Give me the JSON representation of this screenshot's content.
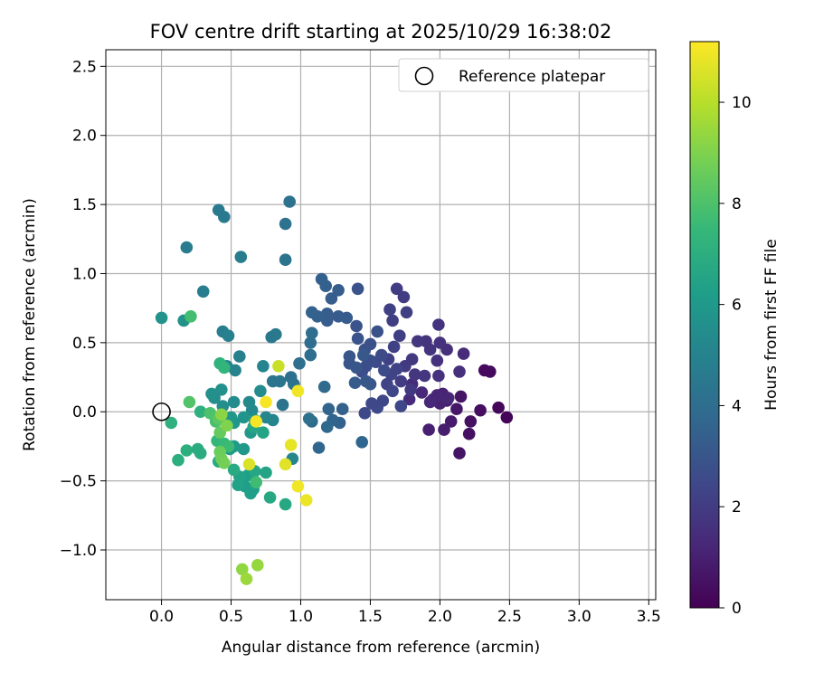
{
  "chart_data": {
    "type": "scatter",
    "title": "FOV centre drift starting at 2025/10/29 16:38:02",
    "xlabel": "Angular distance from reference (arcmin)",
    "ylabel": "Rotation from reference (arcmin)",
    "xlim": [
      -0.4,
      3.55
    ],
    "ylim": [
      -1.36,
      2.62
    ],
    "xticks": [
      "0.0",
      "0.5",
      "1.0",
      "1.5",
      "2.0",
      "2.5",
      "3.0",
      "3.5"
    ],
    "yticks": [
      "−1.0",
      "−0.5",
      "0.0",
      "0.5",
      "1.0",
      "1.5",
      "2.0",
      "2.5"
    ],
    "grid": true,
    "legend": {
      "position": "top-right",
      "entries": [
        "Reference platepar"
      ]
    },
    "reference_point": {
      "x": 0.0,
      "y": 0.0
    },
    "colorbar": {
      "label": "Hours from first FF file",
      "range": [
        0,
        11.2
      ],
      "ticks": [
        "0",
        "2",
        "4",
        "6",
        "8",
        "10"
      ],
      "colormap": [
        "#440154",
        "#482878",
        "#3e4989",
        "#31688e",
        "#26828e",
        "#1f9e89",
        "#35b779",
        "#6ece58",
        "#b5de2b",
        "#fde725"
      ]
    },
    "series": [
      {
        "name": "Hours from first FF file (colour)",
        "points": [
          [
            2.48,
            -0.04,
            0.1
          ],
          [
            2.42,
            0.03,
            0.2
          ],
          [
            2.36,
            0.29,
            0.3
          ],
          [
            2.32,
            0.3,
            0.3
          ],
          [
            2.29,
            0.01,
            0.4
          ],
          [
            2.22,
            -0.07,
            0.5
          ],
          [
            2.21,
            -0.16,
            0.5
          ],
          [
            2.14,
            -0.3,
            0.6
          ],
          [
            2.15,
            0.11,
            0.6
          ],
          [
            2.12,
            0.02,
            0.7
          ],
          [
            2.08,
            -0.07,
            0.8
          ],
          [
            2.03,
            -0.13,
            0.9
          ],
          [
            2.05,
            0.08,
            0.9
          ],
          [
            1.92,
            -0.13,
            1.0
          ],
          [
            1.95,
            0.09,
            1.0
          ],
          [
            2.0,
            0.06,
            1.1
          ],
          [
            2.02,
            0.13,
            1.1
          ],
          [
            2.06,
            0.1,
            1.2
          ],
          [
            1.98,
            0.12,
            1.2
          ],
          [
            1.93,
            0.07,
            1.3
          ],
          [
            1.87,
            0.14,
            1.3
          ],
          [
            1.78,
            0.09,
            1.4
          ],
          [
            1.8,
            0.2,
            1.4
          ],
          [
            2.17,
            0.42,
            1.4
          ],
          [
            2.14,
            0.29,
            1.5
          ],
          [
            2.05,
            0.45,
            1.5
          ],
          [
            2.0,
            0.5,
            1.6
          ],
          [
            1.99,
            0.26,
            1.6
          ],
          [
            1.98,
            0.37,
            1.6
          ],
          [
            1.99,
            0.63,
            1.7
          ],
          [
            1.93,
            0.45,
            1.7
          ],
          [
            1.9,
            0.51,
            1.7
          ],
          [
            1.89,
            0.26,
            1.8
          ],
          [
            1.84,
            0.51,
            1.8
          ],
          [
            1.82,
            0.27,
            1.8
          ],
          [
            1.8,
            0.38,
            1.9
          ],
          [
            1.75,
            0.33,
            1.9
          ],
          [
            1.79,
            0.16,
            1.9
          ],
          [
            1.72,
            0.22,
            2.0
          ],
          [
            1.69,
            0.89,
            2.0
          ],
          [
            1.74,
            0.83,
            2.0
          ],
          [
            1.76,
            0.72,
            2.1
          ],
          [
            1.71,
            0.55,
            2.1
          ],
          [
            1.66,
            0.66,
            2.1
          ],
          [
            1.64,
            0.74,
            2.2
          ],
          [
            1.67,
            0.47,
            2.2
          ],
          [
            1.63,
            0.38,
            2.2
          ],
          [
            1.69,
            0.31,
            2.3
          ],
          [
            1.65,
            0.27,
            2.3
          ],
          [
            1.62,
            0.2,
            2.3
          ],
          [
            1.66,
            0.15,
            2.4
          ],
          [
            1.72,
            0.04,
            2.4
          ],
          [
            1.59,
            0.08,
            2.4
          ],
          [
            1.55,
            0.03,
            2.5
          ],
          [
            1.51,
            0.06,
            2.5
          ],
          [
            1.46,
            -0.01,
            2.5
          ],
          [
            1.6,
            0.3,
            2.6
          ],
          [
            1.58,
            0.41,
            2.6
          ],
          [
            1.54,
            0.36,
            2.6
          ],
          [
            1.5,
            0.37,
            2.7
          ],
          [
            1.47,
            0.33,
            2.7
          ],
          [
            1.44,
            0.29,
            2.7
          ],
          [
            1.5,
            0.49,
            2.8
          ],
          [
            1.46,
            0.45,
            2.8
          ],
          [
            1.55,
            0.58,
            2.8
          ],
          [
            1.41,
            0.53,
            2.9
          ],
          [
            1.4,
            0.62,
            2.9
          ],
          [
            1.41,
            0.89,
            2.9
          ],
          [
            1.35,
            0.35,
            3.0
          ],
          [
            1.4,
            0.32,
            3.0
          ],
          [
            1.35,
            0.4,
            3.0
          ],
          [
            1.47,
            0.22,
            3.1
          ],
          [
            1.5,
            0.2,
            3.1
          ],
          [
            1.45,
            0.41,
            3.1
          ],
          [
            1.39,
            0.21,
            3.2
          ],
          [
            1.33,
            0.68,
            3.2
          ],
          [
            1.27,
            0.69,
            3.2
          ],
          [
            1.27,
            0.88,
            3.3
          ],
          [
            1.19,
            0.71,
            3.3
          ],
          [
            1.22,
            0.82,
            3.3
          ],
          [
            1.19,
            0.66,
            3.3
          ],
          [
            1.15,
            0.96,
            3.4
          ],
          [
            1.18,
            0.91,
            3.4
          ],
          [
            1.12,
            0.69,
            3.4
          ],
          [
            1.08,
            0.72,
            3.5
          ],
          [
            1.28,
            -0.08,
            3.5
          ],
          [
            1.3,
            0.02,
            3.5
          ],
          [
            1.23,
            -0.06,
            3.6
          ],
          [
            1.2,
            0.02,
            3.6
          ],
          [
            1.44,
            -0.22,
            3.7
          ],
          [
            1.13,
            -0.26,
            3.7
          ],
          [
            1.19,
            -0.11,
            3.8
          ],
          [
            1.08,
            -0.07,
            3.9
          ],
          [
            1.17,
            0.18,
            3.9
          ],
          [
            1.07,
            0.41,
            4.0
          ],
          [
            1.07,
            0.5,
            4.0
          ],
          [
            1.08,
            0.57,
            4.0
          ],
          [
            1.06,
            -0.05,
            4.1
          ],
          [
            0.99,
            0.35,
            4.1
          ],
          [
            0.93,
            0.25,
            4.1
          ],
          [
            0.92,
            1.52,
            4.2
          ],
          [
            0.89,
            1.36,
            4.2
          ],
          [
            0.89,
            1.1,
            4.3
          ],
          [
            0.95,
            0.2,
            4.3
          ],
          [
            0.87,
            0.05,
            4.3
          ],
          [
            0.85,
            0.22,
            4.4
          ],
          [
            0.8,
            0.22,
            4.4
          ],
          [
            0.79,
            0.54,
            4.5
          ],
          [
            0.82,
            0.56,
            4.5
          ],
          [
            0.41,
            1.46,
            4.6
          ],
          [
            0.45,
            1.41,
            4.6
          ],
          [
            0.57,
            1.12,
            4.7
          ],
          [
            0.18,
            1.19,
            4.7
          ],
          [
            0.3,
            0.87,
            4.8
          ],
          [
            0.44,
            0.58,
            4.8
          ],
          [
            0.48,
            0.55,
            4.9
          ],
          [
            0.56,
            0.4,
            4.9
          ],
          [
            0.53,
            0.3,
            5.0
          ],
          [
            0.47,
            0.33,
            5.0
          ],
          [
            0.73,
            0.33,
            5.1
          ],
          [
            0.8,
            -0.06,
            5.1
          ],
          [
            0.94,
            -0.34,
            5.2
          ],
          [
            0.75,
            -0.04,
            5.2
          ],
          [
            0.63,
            0.07,
            5.3
          ],
          [
            0.65,
            0.01,
            5.3
          ],
          [
            0.71,
            0.15,
            5.4
          ],
          [
            0.52,
            0.07,
            5.4
          ],
          [
            0.44,
            0.04,
            5.5
          ],
          [
            0.38,
            0.1,
            5.5
          ],
          [
            0.43,
            0.16,
            5.6
          ],
          [
            0.36,
            0.13,
            5.6
          ],
          [
            0.16,
            0.66,
            5.7
          ],
          [
            0.0,
            0.68,
            5.7
          ],
          [
            0.67,
            -0.06,
            5.8
          ],
          [
            0.59,
            -0.04,
            5.8
          ],
          [
            0.52,
            -0.08,
            5.9
          ],
          [
            0.5,
            -0.04,
            5.9
          ],
          [
            0.64,
            -0.15,
            6.0
          ],
          [
            0.59,
            -0.27,
            6.0
          ],
          [
            0.52,
            -0.25,
            6.1
          ],
          [
            0.49,
            -0.27,
            6.1
          ],
          [
            0.57,
            -0.5,
            6.2
          ],
          [
            0.6,
            -0.54,
            6.2
          ],
          [
            0.66,
            -0.56,
            6.3
          ],
          [
            0.64,
            -0.59,
            6.3
          ],
          [
            0.62,
            -0.46,
            6.3
          ],
          [
            0.55,
            -0.53,
            6.4
          ],
          [
            0.56,
            -0.47,
            6.4
          ],
          [
            0.75,
            -0.44,
            6.5
          ],
          [
            0.73,
            -0.15,
            6.5
          ],
          [
            0.66,
            -0.11,
            6.6
          ],
          [
            0.67,
            -0.43,
            6.6
          ],
          [
            0.78,
            -0.62,
            6.7
          ],
          [
            0.89,
            -0.67,
            6.7
          ],
          [
            0.52,
            -0.42,
            6.8
          ],
          [
            0.41,
            -0.36,
            6.8
          ],
          [
            0.26,
            -0.27,
            6.9
          ],
          [
            0.28,
            -0.3,
            6.9
          ],
          [
            0.18,
            -0.28,
            7.0
          ],
          [
            0.12,
            -0.35,
            7.0
          ],
          [
            0.07,
            -0.08,
            7.1
          ],
          [
            0.28,
            0.0,
            7.1
          ],
          [
            0.42,
            0.35,
            7.2
          ],
          [
            0.45,
            0.32,
            7.3
          ],
          [
            0.4,
            -0.21,
            7.4
          ],
          [
            0.45,
            -0.23,
            7.5
          ],
          [
            0.48,
            -0.25,
            7.6
          ],
          [
            0.68,
            -0.51,
            7.7
          ],
          [
            0.21,
            0.69,
            7.8
          ],
          [
            0.39,
            -0.07,
            7.9
          ],
          [
            0.35,
            -0.01,
            8.0
          ],
          [
            0.2,
            0.07,
            8.1
          ],
          [
            0.41,
            -0.05,
            8.3
          ],
          [
            0.42,
            -0.15,
            8.5
          ],
          [
            0.42,
            -0.29,
            8.6
          ],
          [
            0.43,
            -0.34,
            8.7
          ],
          [
            0.45,
            -0.37,
            8.8
          ],
          [
            0.47,
            -0.1,
            9.0
          ],
          [
            0.43,
            -0.02,
            9.2
          ],
          [
            0.58,
            -1.14,
            9.3
          ],
          [
            0.69,
            -1.11,
            9.4
          ],
          [
            0.61,
            -1.21,
            9.5
          ],
          [
            0.84,
            0.33,
            10.3
          ],
          [
            0.63,
            -0.38,
            10.6
          ],
          [
            0.89,
            -0.38,
            10.7
          ],
          [
            0.93,
            -0.24,
            10.8
          ],
          [
            1.04,
            -0.64,
            10.9
          ],
          [
            0.98,
            -0.54,
            11.0
          ],
          [
            0.98,
            0.15,
            11.0
          ],
          [
            0.75,
            0.07,
            11.1
          ],
          [
            0.68,
            -0.07,
            11.1
          ]
        ]
      }
    ]
  }
}
